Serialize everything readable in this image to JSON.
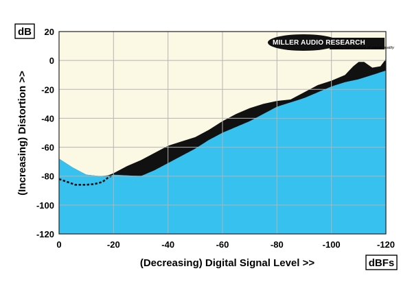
{
  "chart_data": {
    "type": "area",
    "xlabel": "(Decreasing) Digital Signal Level >>",
    "ylabel": "(Increasing) Distortion >>",
    "y_unit": "dB",
    "x_unit": "dBFs",
    "xlim": [
      0,
      -120
    ],
    "ylim": [
      -120,
      20
    ],
    "x_ticks": [
      0,
      -20,
      -40,
      -60,
      -80,
      -100,
      -120
    ],
    "y_ticks": [
      20,
      0,
      -20,
      -40,
      -60,
      -80,
      -100,
      -120
    ],
    "grid": true,
    "logo": {
      "name": "MILLER AUDIO RESEARCH",
      "tagline": "setting the measure of sound quality"
    },
    "colors": {
      "plot_bg": "#fbf8e4",
      "fill": "#36c1ef",
      "band": "#111111",
      "dotted": "#111111",
      "grid": "#b4b4b4"
    },
    "series": [
      {
        "role": "distortion-upper",
        "x": [
          0,
          -5,
          -10,
          -15,
          -18,
          -20,
          -25,
          -30,
          -35,
          -40,
          -45,
          -50,
          -55,
          -60,
          -65,
          -70,
          -75,
          -80,
          -85,
          -90,
          -95,
          -100,
          -105,
          -108,
          -110,
          -112,
          -115,
          -118,
          -120
        ],
        "y": [
          -68,
          -74,
          -79,
          -80,
          -79.5,
          -78,
          -73,
          -69,
          -64,
          -59,
          -56,
          -53,
          -48,
          -42,
          -37,
          -33,
          -30,
          -28,
          -27,
          -22,
          -17,
          -14,
          -10,
          -4,
          -1,
          -1,
          -5,
          -4,
          1
        ]
      },
      {
        "role": "distortion-lower",
        "x": [
          0,
          -2,
          -5,
          -8,
          -10,
          -15,
          -18,
          -20,
          -25,
          -30,
          -35,
          -40,
          -45,
          -50,
          -55,
          -60,
          -65,
          -70,
          -75,
          -80,
          -85,
          -90,
          -95,
          -100,
          -105,
          -110,
          -115,
          -120
        ],
        "y": [
          -68,
          -69,
          -73,
          -77,
          -78.5,
          -80,
          -80,
          -79,
          -79.5,
          -80,
          -76,
          -71,
          -66,
          -61,
          -55,
          -50,
          -46,
          -42,
          -37,
          -32,
          -29,
          -26,
          -22,
          -18,
          -15,
          -13,
          -10,
          -7
        ]
      },
      {
        "role": "dotted",
        "x": [
          0,
          -3,
          -6,
          -10,
          -13,
          -16,
          -18,
          -20
        ],
        "y": [
          -82,
          -84,
          -86,
          -86,
          -85.5,
          -84,
          -81,
          -79
        ]
      }
    ]
  }
}
